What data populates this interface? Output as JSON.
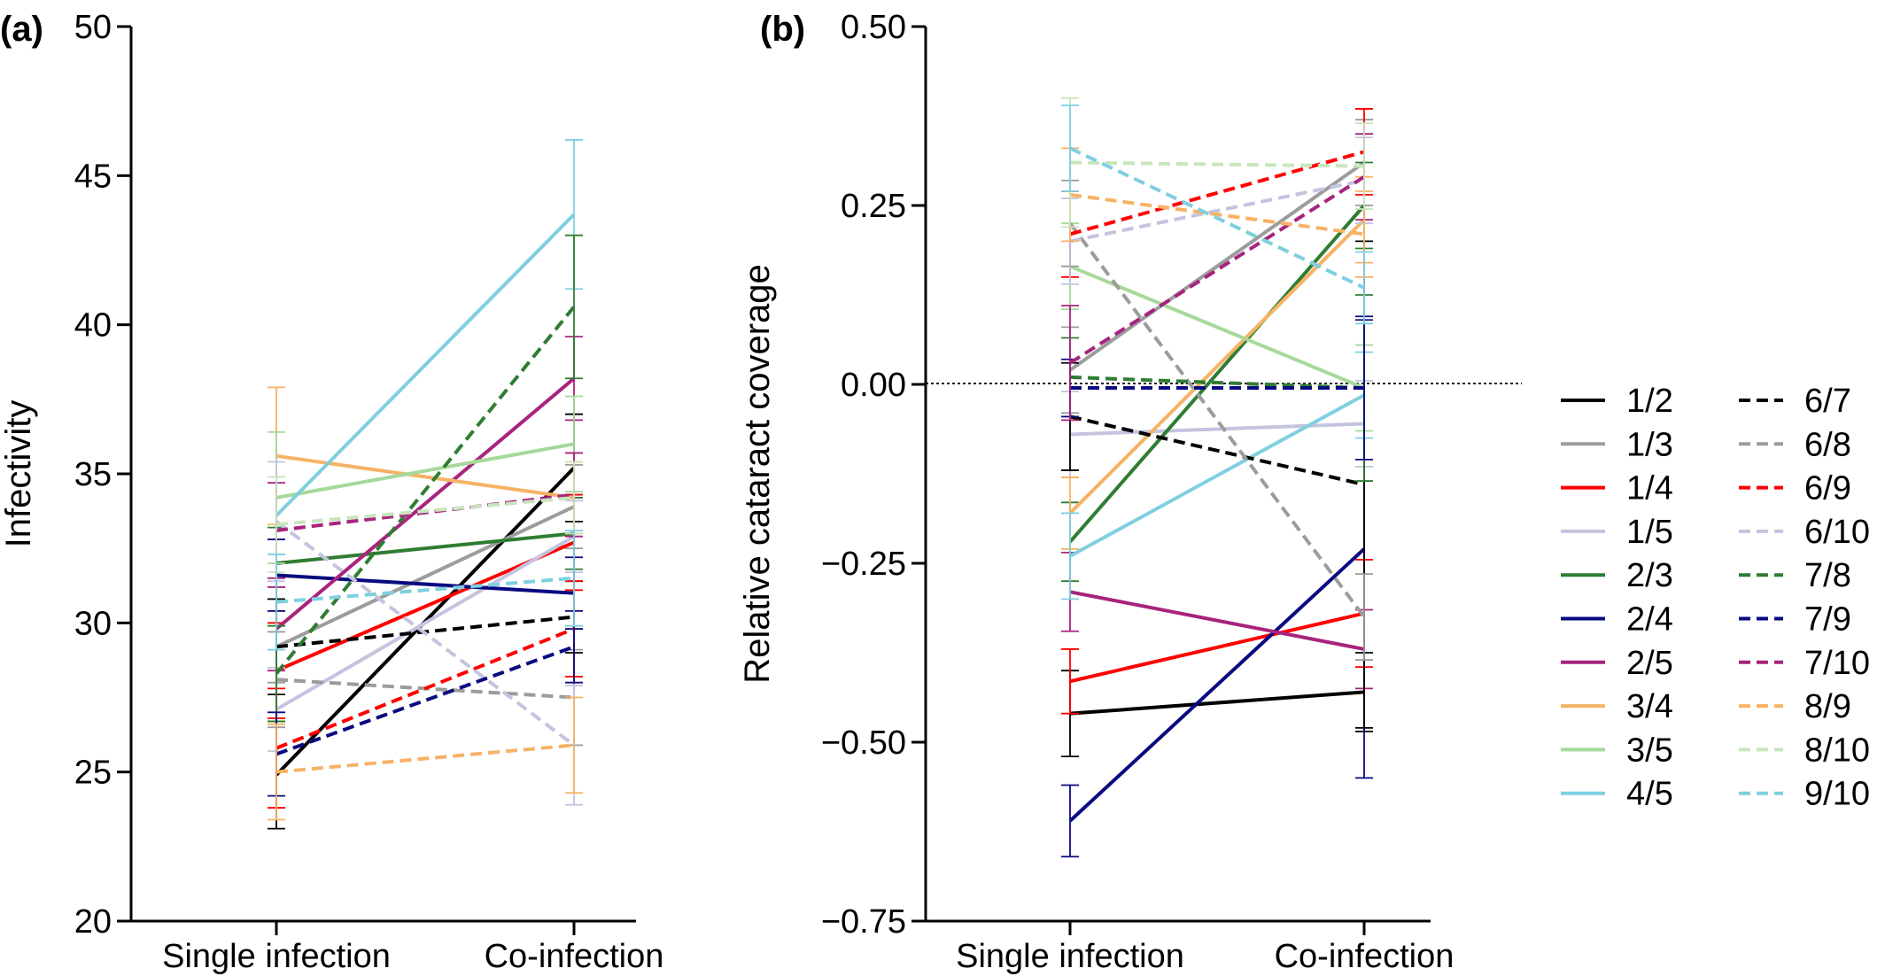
{
  "chart_data": [
    {
      "panel": "(a)",
      "type": "line",
      "ylabel": "Infectivity",
      "xlabel": "",
      "categories": [
        "Single infection",
        "Co-infection"
      ],
      "ylim": [
        20,
        50
      ],
      "yticks": [
        20,
        25,
        30,
        35,
        40,
        45,
        50
      ],
      "grid": false,
      "series": [
        {
          "name": "1/2",
          "color": "#000000",
          "dashed": false,
          "values": [
            24.9,
            35.2
          ],
          "errors": [
            1.8,
            1.8
          ]
        },
        {
          "name": "1/3",
          "color": "#9c9c9c",
          "dashed": false,
          "values": [
            29.2,
            33.9
          ],
          "errors": [
            1.2,
            1.4
          ]
        },
        {
          "name": "1/4",
          "color": "#ff0000",
          "dashed": false,
          "values": [
            28.4,
            32.7
          ],
          "errors": [
            1.6,
            1.6
          ]
        },
        {
          "name": "1/5",
          "color": "#c4c4e0",
          "dashed": false,
          "values": [
            27.1,
            32.9
          ],
          "errors": [
            1.4,
            1.2
          ]
        },
        {
          "name": "2/3",
          "color": "#2f7d32",
          "dashed": false,
          "values": [
            32.0,
            33.0
          ],
          "errors": [
            1.2,
            1.2
          ]
        },
        {
          "name": "2/4",
          "color": "#0a0a80",
          "dashed": false,
          "values": [
            31.6,
            31.0
          ],
          "errors": [
            1.2,
            1.2
          ]
        },
        {
          "name": "2/5",
          "color": "#a8237e",
          "dashed": false,
          "values": [
            29.8,
            38.2
          ],
          "errors": [
            1.4,
            1.4
          ]
        },
        {
          "name": "3/4",
          "color": "#f7b266",
          "dashed": false,
          "values": [
            35.6,
            34.2
          ],
          "errors": [
            2.3,
            1.2
          ]
        },
        {
          "name": "3/5",
          "color": "#a6d99a",
          "dashed": false,
          "values": [
            34.2,
            36.0
          ],
          "errors": [
            2.2,
            1.6
          ]
        },
        {
          "name": "4/5",
          "color": "#7fcfe0",
          "dashed": false,
          "values": [
            33.6,
            43.7
          ],
          "errors": [
            1.3,
            2.5
          ]
        },
        {
          "name": "6/7",
          "color": "#000000",
          "dashed": true,
          "values": [
            29.2,
            30.2
          ],
          "errors": [
            1.6,
            1.2
          ]
        },
        {
          "name": "6/8",
          "color": "#9c9c9c",
          "dashed": true,
          "values": [
            28.1,
            27.5
          ],
          "errors": [
            1.6,
            1.6
          ]
        },
        {
          "name": "6/9",
          "color": "#ff0000",
          "dashed": true,
          "values": [
            25.8,
            29.8
          ],
          "errors": [
            2.0,
            1.6
          ]
        },
        {
          "name": "6/10",
          "color": "#c4c4e0",
          "dashed": true,
          "values": [
            33.4,
            25.9
          ],
          "errors": [
            2.0,
            2.0
          ]
        },
        {
          "name": "7/8",
          "color": "#2f7d32",
          "dashed": true,
          "values": [
            28.3,
            40.6
          ],
          "errors": [
            1.6,
            2.4
          ]
        },
        {
          "name": "7/9",
          "color": "#0a0a80",
          "dashed": true,
          "values": [
            25.6,
            29.2
          ],
          "errors": [
            1.4,
            1.2
          ]
        },
        {
          "name": "7/10",
          "color": "#a8237e",
          "dashed": true,
          "values": [
            33.1,
            34.3
          ],
          "errors": [
            1.6,
            1.4
          ]
        },
        {
          "name": "8/9",
          "color": "#f7b266",
          "dashed": true,
          "values": [
            25.0,
            25.9
          ],
          "errors": [
            1.6,
            1.6
          ]
        },
        {
          "name": "8/10",
          "color": "#c8e6bc",
          "dashed": true,
          "values": [
            33.3,
            34.2
          ],
          "errors": [
            1.6,
            1.2
          ]
        },
        {
          "name": "9/10",
          "color": "#7fcfe0",
          "dashed": true,
          "values": [
            30.7,
            31.5
          ],
          "errors": [
            1.6,
            1.6
          ]
        }
      ]
    },
    {
      "panel": "(b)",
      "type": "line",
      "ylabel": "Relative cataract coverage",
      "xlabel": "",
      "categories": [
        "Single infection",
        "Co-infection"
      ],
      "ylim": [
        -0.75,
        0.5
      ],
      "yticks": [
        "0.50",
        "0.25",
        "0.00",
        "−0.25",
        "−0.50",
        "−0.75"
      ],
      "ytick_values": [
        0.5,
        0.25,
        0,
        -0.25,
        -0.5,
        -0.75
      ],
      "reference_line": 0,
      "grid": false,
      "legend": "right",
      "series": [
        {
          "name": "1/2",
          "color": "#000000",
          "dashed": false,
          "values": [
            -0.46,
            -0.43
          ],
          "errors": [
            0.06,
            0.055
          ]
        },
        {
          "name": "1/3",
          "color": "#9c9c9c",
          "dashed": false,
          "values": [
            0.02,
            0.31
          ],
          "errors": [
            0.06,
            0.06
          ]
        },
        {
          "name": "1/4",
          "color": "#ff0000",
          "dashed": false,
          "values": [
            -0.415,
            -0.32
          ],
          "errors": [
            0.045,
            0.075
          ]
        },
        {
          "name": "1/5",
          "color": "#c4c4e0",
          "dashed": false,
          "values": [
            -0.07,
            -0.055
          ],
          "errors": [
            0.06,
            0.06
          ]
        },
        {
          "name": "2/3",
          "color": "#2f7d32",
          "dashed": false,
          "values": [
            -0.22,
            0.25
          ],
          "errors": [
            0.055,
            0.06
          ]
        },
        {
          "name": "2/4",
          "color": "#0a0a80",
          "dashed": false,
          "values": [
            -0.61,
            -0.23
          ],
          "errors": [
            0.05,
            0.32
          ]
        },
        {
          "name": "2/5",
          "color": "#a8237e",
          "dashed": false,
          "values": [
            -0.29,
            -0.37
          ],
          "errors": [
            0.055,
            0.055
          ]
        },
        {
          "name": "3/4",
          "color": "#f7b266",
          "dashed": false,
          "values": [
            -0.18,
            0.23
          ],
          "errors": [
            0.05,
            0.06
          ]
        },
        {
          "name": "3/5",
          "color": "#a6d99a",
          "dashed": false,
          "values": [
            0.165,
            -0.005
          ],
          "errors": [
            0.06,
            0.06
          ]
        },
        {
          "name": "4/5",
          "color": "#7fcfe0",
          "dashed": false,
          "values": [
            -0.24,
            -0.015
          ],
          "errors": [
            0.06,
            0.06
          ]
        },
        {
          "name": "6/7",
          "color": "#000000",
          "dashed": true,
          "values": [
            -0.045,
            -0.14
          ],
          "errors": [
            0.075,
            0.34
          ]
        },
        {
          "name": "6/8",
          "color": "#9c9c9c",
          "dashed": true,
          "values": [
            0.225,
            -0.325
          ],
          "errors": [
            0.06,
            0.06
          ]
        },
        {
          "name": "6/9",
          "color": "#ff0000",
          "dashed": true,
          "values": [
            0.21,
            0.325
          ],
          "errors": [
            0.06,
            0.06
          ]
        },
        {
          "name": "6/10",
          "color": "#c4c4e0",
          "dashed": true,
          "values": [
            0.2,
            0.285
          ],
          "errors": [
            0.06,
            0.06
          ]
        },
        {
          "name": "7/8",
          "color": "#2f7d32",
          "dashed": true,
          "values": [
            0.01,
            -0.005
          ],
          "errors": [
            0.055,
            0.13
          ]
        },
        {
          "name": "7/9",
          "color": "#0a0a80",
          "dashed": true,
          "values": [
            -0.005,
            -0.005
          ],
          "errors": [
            0.04,
            0.1
          ]
        },
        {
          "name": "7/10",
          "color": "#a8237e",
          "dashed": true,
          "values": [
            0.03,
            0.29
          ],
          "errors": [
            0.08,
            0.06
          ]
        },
        {
          "name": "8/9",
          "color": "#f7b266",
          "dashed": true,
          "values": [
            0.265,
            0.21
          ],
          "errors": [
            0.065,
            0.06
          ]
        },
        {
          "name": "8/10",
          "color": "#c8e6bc",
          "dashed": true,
          "values": [
            0.31,
            0.305
          ],
          "errors": [
            0.09,
            0.06
          ]
        },
        {
          "name": "9/10",
          "color": "#7fcfe0",
          "dashed": true,
          "values": [
            0.33,
            0.135
          ],
          "errors": [
            0.06,
            0.05
          ]
        }
      ]
    }
  ]
}
